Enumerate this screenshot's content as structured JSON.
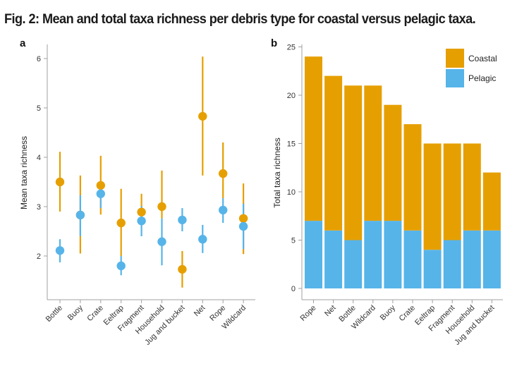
{
  "figure": {
    "title": "Fig. 2: Mean and total taxa richness per debris type for coastal versus pelagic taxa."
  },
  "colors": {
    "coastal": "#E69F00",
    "pelagic": "#56B4E9",
    "axis": "#a0a0a0"
  },
  "chart_data": [
    {
      "panel": "a",
      "type": "scatter",
      "subtype": "point-range",
      "title": "",
      "xlabel": "",
      "ylabel": "Mean taxa richness",
      "ylim": [
        1.2,
        6.3
      ],
      "yticks": [
        2,
        3,
        4,
        5,
        6
      ],
      "grid": false,
      "categories": [
        "Bottle",
        "Buoy",
        "Crate",
        "Eeltrap",
        "Fragment",
        "Household",
        "Jug and bucket",
        "Net",
        "Rope",
        "Wildcard"
      ],
      "series": [
        {
          "name": "Coastal",
          "mean": [
            3.5,
            2.83,
            3.43,
            2.67,
            2.89,
            3.0,
            1.73,
            4.83,
            3.67,
            2.76
          ],
          "lower": [
            2.9,
            2.05,
            2.84,
            2.0,
            2.75,
            2.76,
            1.36,
            3.63,
            3.17,
            2.04
          ],
          "upper": [
            4.11,
            3.63,
            4.03,
            3.36,
            3.26,
            3.73,
            2.1,
            6.04,
            4.3,
            3.47
          ]
        },
        {
          "name": "Pelagic",
          "mean": [
            2.11,
            2.83,
            3.26,
            1.8,
            2.71,
            2.29,
            2.73,
            2.34,
            2.93,
            2.6
          ],
          "lower": [
            1.87,
            2.4,
            2.97,
            1.61,
            2.4,
            1.81,
            2.5,
            2.06,
            2.67,
            2.14
          ],
          "upper": [
            2.34,
            3.23,
            3.3,
            2.0,
            3.01,
            2.76,
            2.97,
            2.63,
            3.17,
            3.06
          ]
        }
      ]
    },
    {
      "panel": "b",
      "type": "bar",
      "stacked": true,
      "title": "",
      "xlabel": "",
      "ylabel": "Total taxa richness",
      "ylim": [
        0,
        25
      ],
      "yticks": [
        0,
        5,
        10,
        15,
        20,
        25
      ],
      "grid": false,
      "legend_position": "top-right",
      "categories": [
        "Rope",
        "Net",
        "Bottle",
        "Wildcard",
        "Buoy",
        "Crate",
        "Eeltrap",
        "Fragment",
        "Household",
        "Jug and bucket"
      ],
      "totals": [
        24,
        22,
        21,
        21,
        19,
        17,
        15,
        15,
        15,
        12
      ],
      "series": [
        {
          "name": "Pelagic",
          "values": [
            7,
            6,
            5,
            7,
            7,
            6,
            4,
            5,
            6,
            6
          ]
        },
        {
          "name": "Coastal",
          "values": [
            17,
            16,
            16,
            14,
            12,
            11,
            11,
            10,
            9,
            6
          ]
        }
      ],
      "legend": [
        "Coastal",
        "Pelagic"
      ]
    }
  ]
}
